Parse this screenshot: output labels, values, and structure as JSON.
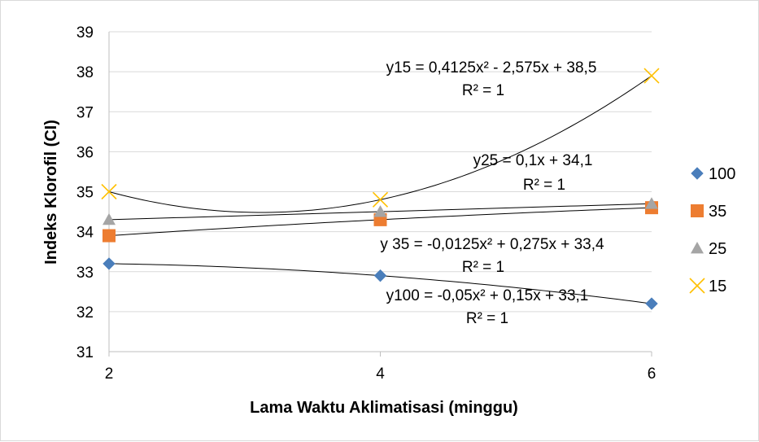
{
  "chart_data": {
    "type": "scatter",
    "title": "",
    "xlabel": "Lama Waktu Aklimatisasi (minggu)",
    "ylabel": "Indeks Klorofil  (CI)",
    "xlim": [
      2,
      6
    ],
    "ylim": [
      31,
      39
    ],
    "x_ticks": [
      "2",
      "4",
      "6"
    ],
    "y_ticks": [
      "31",
      "32",
      "33",
      "34",
      "35",
      "36",
      "37",
      "38",
      "39"
    ],
    "grid": "horizontal",
    "legend_position": "right",
    "x": [
      2,
      4,
      6
    ],
    "series": [
      {
        "name": "100",
        "marker": "diamond",
        "color": "#4a7ebb",
        "values": [
          33.2,
          32.9,
          32.2
        ],
        "trendline": {
          "degree": 2,
          "coefficients": [
            -0.05,
            0.15,
            33.1
          ],
          "label_line1": "y100 = -0,05x² + 0,15x + 33,1",
          "label_line2": "R² = 1"
        }
      },
      {
        "name": "35",
        "marker": "square",
        "color": "#ed7d31",
        "values": [
          33.9,
          34.3,
          34.6
        ],
        "trendline": {
          "degree": 2,
          "coefficients": [
            -0.0125,
            0.275,
            33.4
          ],
          "label_line1": "y 35 = -0,0125x² + 0,275x + 33,4",
          "label_line2": "R² = 1"
        }
      },
      {
        "name": "25",
        "marker": "triangle",
        "color": "#a5a5a5",
        "values": [
          34.3,
          34.5,
          34.7
        ],
        "trendline": {
          "degree": 1,
          "coefficients": [
            0.1,
            34.1
          ],
          "label_line1": "y25 = 0,1x + 34,1",
          "label_line2": "R² = 1"
        }
      },
      {
        "name": "15",
        "marker": "x",
        "color": "#ffc000",
        "values": [
          35.0,
          34.8,
          37.9
        ],
        "trendline": {
          "degree": 2,
          "coefficients": [
            0.4125,
            -2.575,
            38.5
          ],
          "label_line1": "y15 = 0,4125x² - 2,575x + 38,5",
          "label_line2": "R² = 1"
        }
      }
    ]
  }
}
